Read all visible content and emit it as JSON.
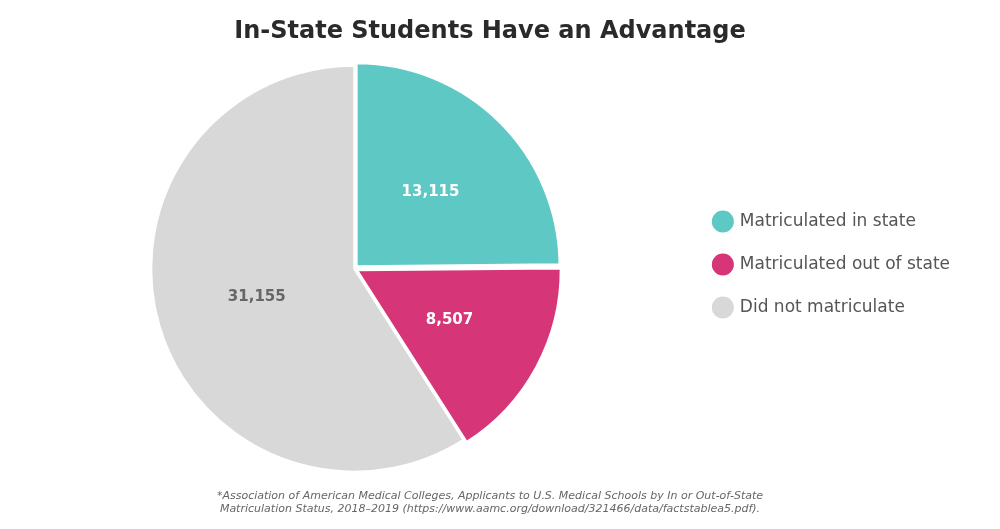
{
  "chart_data": {
    "type": "pie",
    "title": "In-State Students Have an Advantage",
    "categories": [
      "Matriculated in state",
      "Matriculated out of state",
      "Did not matriculate"
    ],
    "values": [
      13115,
      8507,
      31155
    ],
    "value_labels": [
      "13,115",
      "8,507",
      "31,155"
    ],
    "colors": [
      "#5ec8c5",
      "#d63678",
      "#d8d8d8"
    ],
    "data_labels": true,
    "legend": "right",
    "footnote": "*Association of American Medical Colleges, Applicants to U.S. Medical Schools by In or Out-of-State\nMatriculation Status, 2018–2019 (https://www.aamc.org/download/321466/data/factstablea5.pdf)."
  }
}
